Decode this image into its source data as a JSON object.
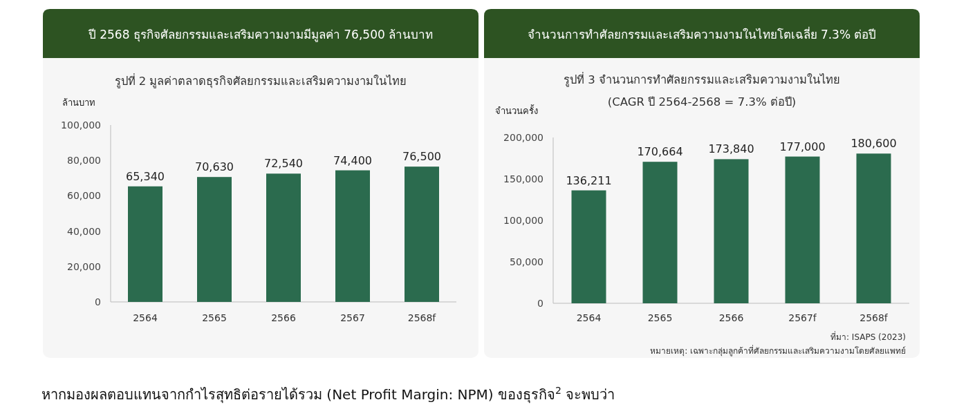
{
  "chart_data": [
    {
      "type": "bar",
      "title": "ปี 2568 ธุรกิจศัลยกรรมและเสริมความงามมีมูลค่า 76,500 ล้านบาท",
      "subtitle": "รูปที่ 2  มูลค่าตลาดธุรกิจศัลยกรรมและเสริมความงามในไทย",
      "ylabel": "ล้านบาท",
      "categories": [
        "2564",
        "2565",
        "2566",
        "2567",
        "2568f"
      ],
      "values": [
        65340,
        70630,
        72540,
        74400,
        76500
      ],
      "color": "#2b6b4e",
      "value_labels": [
        "65,340",
        "70,630",
        "72,540",
        "74,400",
        "76,500"
      ],
      "ylim": [
        0,
        100000
      ],
      "yticks": [
        0,
        {
          "value": 20000,
          "label": "20,000"
        },
        {
          "value": 40000,
          "label": "40,000"
        },
        {
          "value": 60000,
          "label": "60,000"
        },
        {
          "value": 80000,
          "label": "80,000"
        },
        {
          "value": 100000,
          "label": "100,000"
        }
      ],
      "annotations": [
        "หากมองผลตอบแทนจากกำไรสุทธิต่อรายได้รวม  (Net Profit Margin: NPM) ของธุรกิจ$^{2}$ จะพบว่า"
      ]
    },
    {
      "type": "bar",
      "title": "จำนวนการทำศัลยกรรมและเสริมความงามในไทยโตเฉลี่ย 7.3% ต่อปี",
      "subtitle": "รูปที่ 3 จำนวนการทำศัลยกรรมและเสริมความงามในไทย\n(CAGR ปี 2564-2568 = 7.3% ต่อปี)",
      "ylabel": "จำนวนครั้ง",
      "categories": [
        "2564",
        "2565",
        "2566",
        "2567f",
        "2568f"
      ],
      "values": [
        136211,
        170664,
        173840,
        177000,
        180600
      ],
      "color": "#2b6b4e",
      "value_labels": [
        "136,211",
        "170,664",
        "173,840",
        "177,000",
        "180,600"
      ],
      "ylim": [
        0,
        200000
      ],
      "yticks": [
        0,
        {
          "value": 50000,
          "label": "50,000"
        },
        {
          "value": 100000,
          "label": "100,000"
        },
        {
          "value": 150000,
          "label": "150,000"
        },
        {
          "value": 200000,
          "label": "200,000"
        }
      ],
      "annotations": [
        "ที่มา: ISAPS (2023)",
        "หมายเหตุ: เฉพาะกลุ่มลูกค้าที่ศัลยกรรมและเสริมความงามโดยศัลยแพทย์"
      ]
    }
  ]
}
